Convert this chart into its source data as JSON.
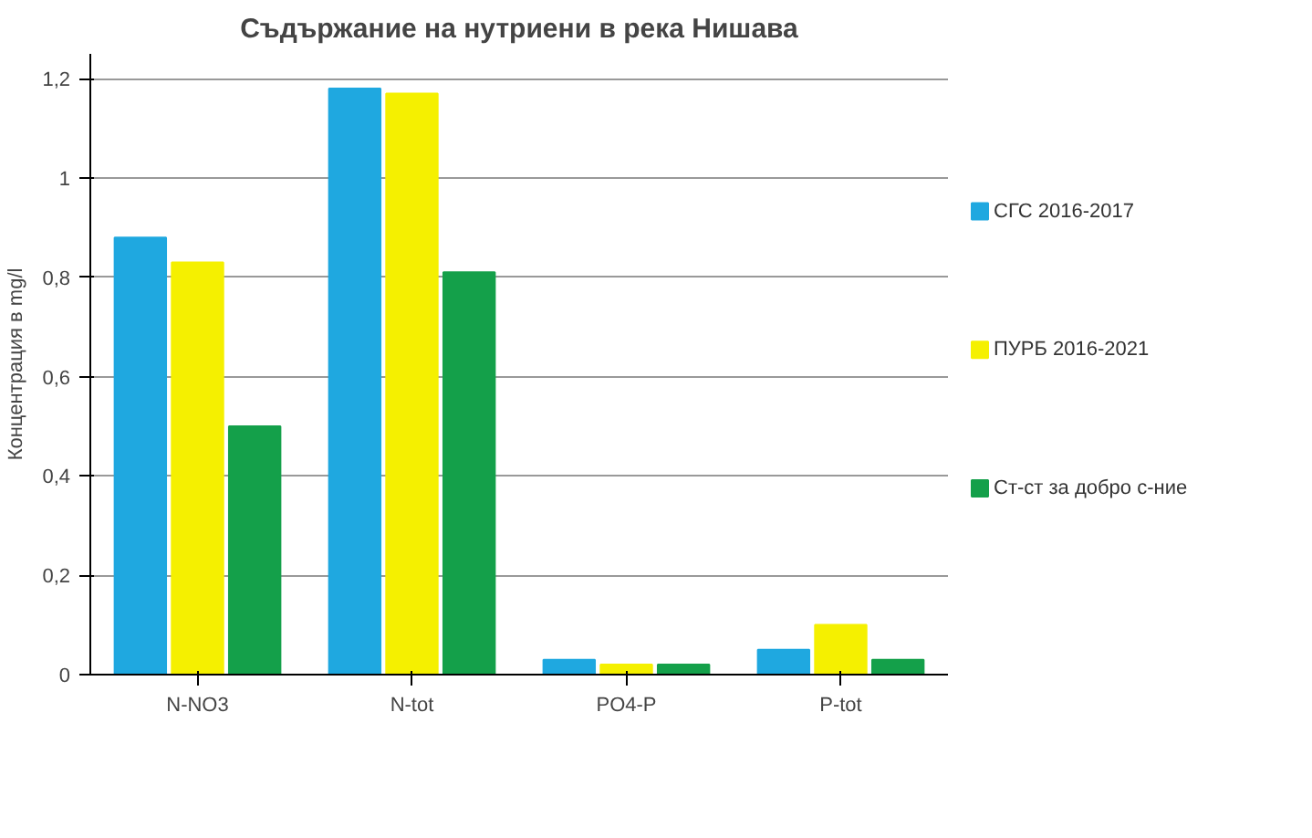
{
  "chart_data": {
    "type": "bar",
    "title": "Съдържание на нутриени в река Нишава",
    "ylabel": "Концентрация в mg/l",
    "categories": [
      "N-NO3",
      "N-tot",
      "PO4-P",
      "P-tot"
    ],
    "series": [
      {
        "name": "СГС 2016-2017",
        "color": "#1fa8e0",
        "values": [
          0.88,
          1.18,
          0.03,
          0.05
        ]
      },
      {
        "name": "ПУРБ 2016-2021",
        "color": "#f5f000",
        "values": [
          0.83,
          1.17,
          0.02,
          0.1
        ]
      },
      {
        "name": "Ст-ст за добро с-ние",
        "color": "#14a04a",
        "values": [
          0.5,
          0.81,
          0.02,
          0.03
        ]
      }
    ],
    "ylim": [
      0,
      1.25
    ],
    "yticks": [
      0,
      {
        "value": 0.2,
        "label": "0,2"
      },
      {
        "value": 0.4,
        "label": "0,4"
      },
      {
        "value": 0.6,
        "label": "0,6"
      },
      {
        "value": 0.8,
        "label": "0,8"
      },
      1,
      {
        "value": 1.2,
        "label": "1,2"
      }
    ],
    "grid": "y",
    "legend": "right"
  }
}
